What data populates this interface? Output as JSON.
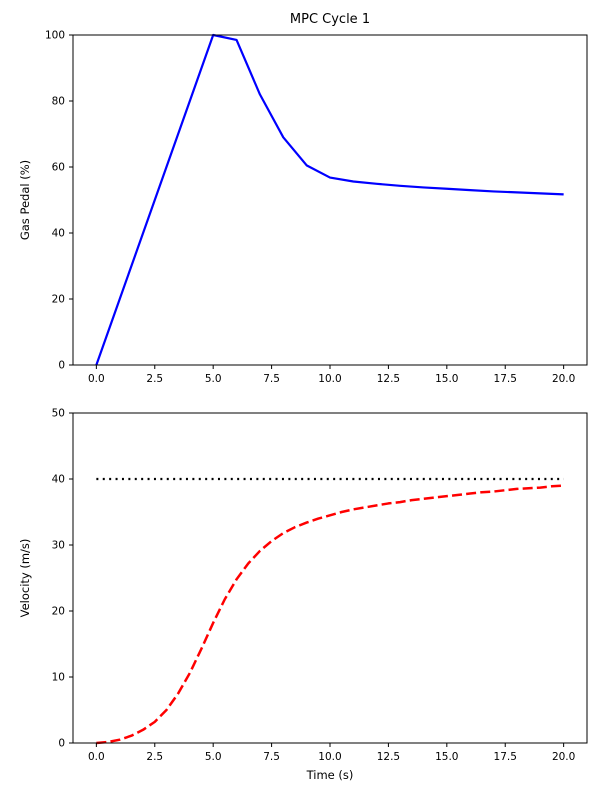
{
  "figure": {
    "background": "#ffffff",
    "title": "MPC Cycle 1"
  },
  "chart_data": [
    {
      "type": "line",
      "title": "MPC Cycle 1",
      "xlabel": "",
      "ylabel": "Gas Pedal (%)",
      "xlim": [
        -1,
        21
      ],
      "ylim": [
        0,
        100
      ],
      "grid": false,
      "legend": "none",
      "xtick_values": [
        0,
        2.5,
        5,
        7.5,
        10,
        12.5,
        15,
        17.5,
        20
      ],
      "xtick_labels": [
        "0.0",
        "2.5",
        "5.0",
        "7.5",
        "10.0",
        "12.5",
        "15.0",
        "17.5",
        "20.0"
      ],
      "ytick_values": [
        0,
        20,
        40,
        60,
        80,
        100
      ],
      "ytick_labels": [
        "0",
        "20",
        "40",
        "60",
        "80",
        "100"
      ],
      "series": [
        {
          "name": "gas-pedal",
          "color": "#0000ff",
          "style": "solid",
          "width": 2.2,
          "x": [
            0,
            1,
            2,
            3,
            4,
            5,
            6,
            7,
            8,
            9,
            10,
            11,
            12,
            13,
            14,
            15,
            16,
            17,
            18,
            19,
            20
          ],
          "y": [
            0,
            20,
            40,
            60,
            80,
            100,
            98.5,
            82,
            69,
            60.5,
            56.8,
            55.6,
            54.9,
            54.3,
            53.8,
            53.4,
            53,
            52.6,
            52.3,
            52,
            51.7
          ]
        }
      ]
    },
    {
      "type": "line",
      "title": "",
      "xlabel": "Time (s)",
      "ylabel": "Velocity (m/s)",
      "xlim": [
        -1,
        21
      ],
      "ylim": [
        0,
        50
      ],
      "grid": false,
      "legend": "none",
      "xtick_values": [
        0,
        2.5,
        5,
        7.5,
        10,
        12.5,
        15,
        17.5,
        20
      ],
      "xtick_labels": [
        "0.0",
        "2.5",
        "5.0",
        "7.5",
        "10.0",
        "12.5",
        "15.0",
        "17.5",
        "20.0"
      ],
      "ytick_values": [
        0,
        10,
        20,
        30,
        40,
        50
      ],
      "ytick_labels": [
        "0",
        "10",
        "20",
        "30",
        "40",
        "50"
      ],
      "series": [
        {
          "name": "target-speed",
          "color": "#000000",
          "style": "dotted",
          "width": 2.2,
          "x": [
            0,
            20
          ],
          "y": [
            40,
            40
          ]
        },
        {
          "name": "velocity",
          "color": "#ff0000",
          "style": "dashed",
          "width": 2.5,
          "x": [
            0,
            0.5,
            1,
            1.5,
            2,
            2.5,
            3,
            3.5,
            4,
            4.5,
            5,
            5.5,
            6,
            6.5,
            7,
            7.5,
            8,
            8.5,
            9,
            9.5,
            10,
            10.5,
            11,
            11.5,
            12,
            12.5,
            13,
            13.5,
            14,
            14.5,
            15,
            15.5,
            16,
            16.5,
            17,
            17.5,
            18,
            18.5,
            19,
            19.5,
            20
          ],
          "y": [
            0,
            0.15,
            0.5,
            1.1,
            2,
            3.2,
            5,
            7.5,
            10.6,
            14.3,
            18.2,
            21.8,
            24.8,
            27.2,
            29.1,
            30.6,
            31.8,
            32.7,
            33.4,
            34,
            34.5,
            35,
            35.4,
            35.7,
            36,
            36.3,
            36.5,
            36.8,
            37,
            37.2,
            37.4,
            37.6,
            37.8,
            38,
            38.1,
            38.3,
            38.5,
            38.6,
            38.7,
            38.9,
            39
          ]
        }
      ]
    }
  ]
}
